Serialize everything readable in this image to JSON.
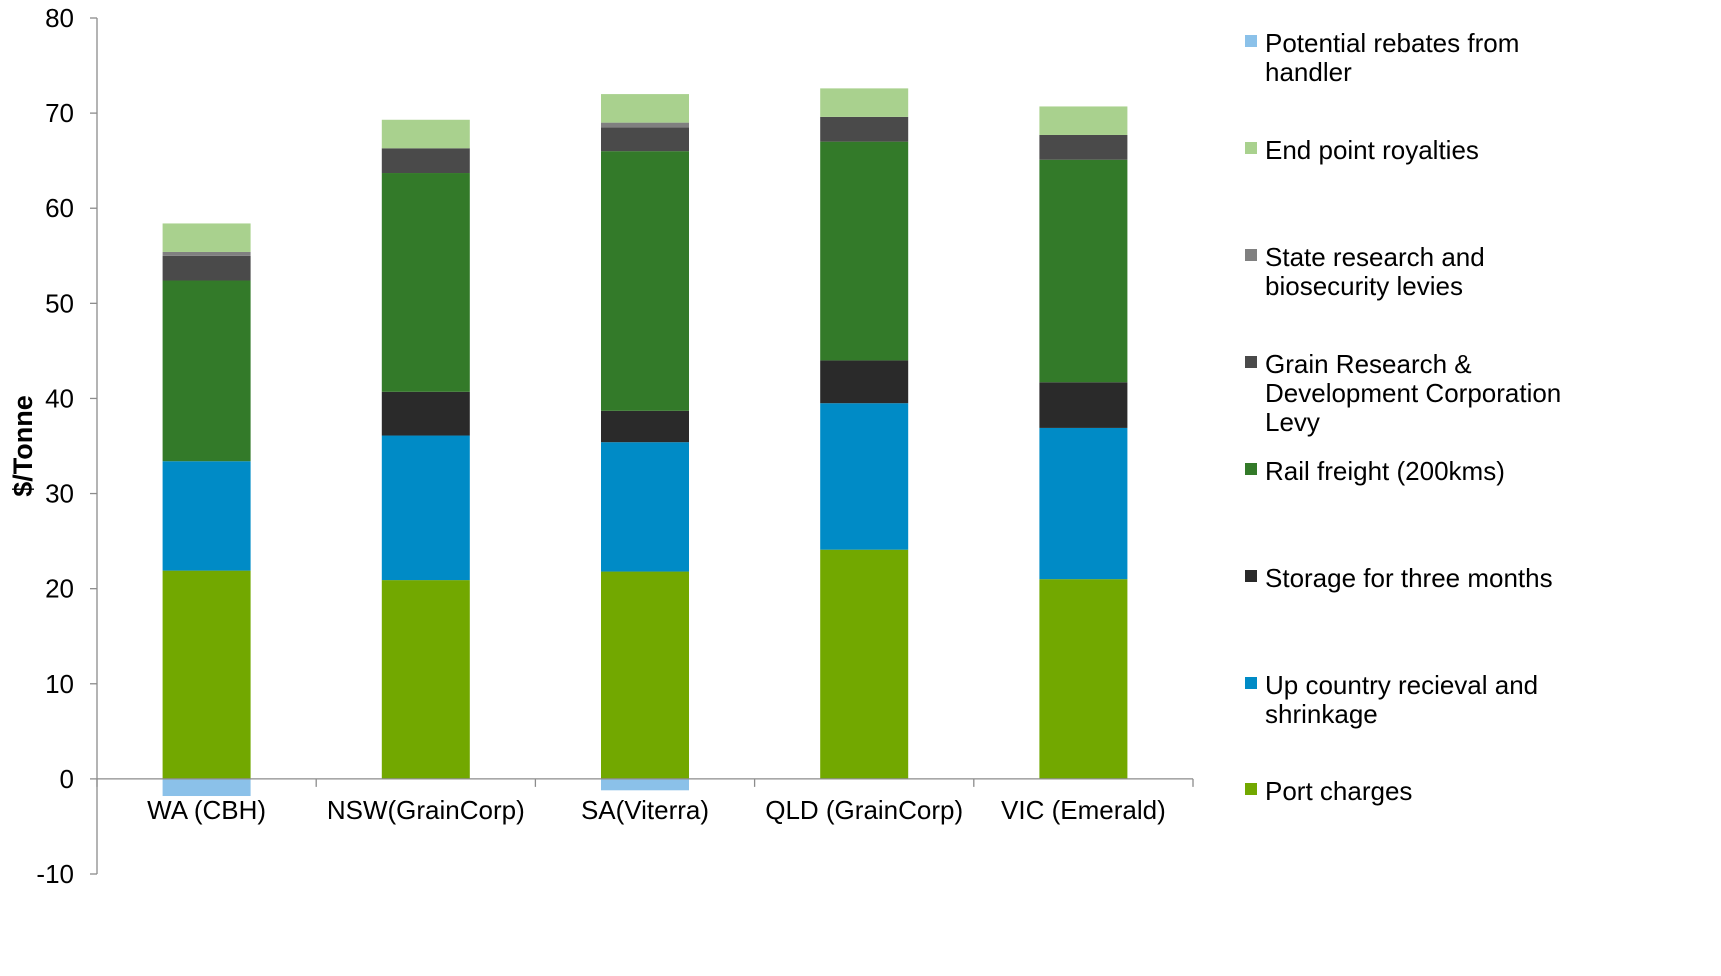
{
  "chart_data": {
    "type": "bar",
    "stacked": true,
    "title": "",
    "xlabel": "",
    "ylabel": "$/Tonne",
    "ylim": [
      -10,
      80
    ],
    "yticks": [
      -10,
      0,
      10,
      20,
      30,
      40,
      50,
      60,
      70,
      80
    ],
    "grid": false,
    "legend_position": "right",
    "categories": [
      "WA (CBH)",
      "NSW(GrainCorp)",
      "SA(Viterra)",
      "QLD (GrainCorp)",
      "VIC (Emerald)"
    ],
    "series": [
      {
        "name": "Port charges",
        "color": "#72A800",
        "values": [
          21.9,
          20.9,
          21.8,
          24.1,
          21.0
        ]
      },
      {
        "name": "Up country recieval and shrinkage",
        "color": "#008BC6",
        "values": [
          11.5,
          15.2,
          13.6,
          15.4,
          15.9
        ]
      },
      {
        "name": "Storage for three months",
        "color": "#2A2A2A",
        "values": [
          0.0,
          4.6,
          3.3,
          4.5,
          4.8
        ]
      },
      {
        "name": "Rail freight (200kms)",
        "color": "#337A29",
        "values": [
          19.0,
          23.0,
          27.3,
          23.0,
          23.4
        ]
      },
      {
        "name": "Grain Research & Development Corporation Levy",
        "color": "#4A4A4A",
        "values": [
          2.6,
          2.6,
          2.5,
          2.6,
          2.6
        ]
      },
      {
        "name": "State research and biosecurity levies",
        "color": "#808080",
        "values": [
          0.4,
          0.0,
          0.5,
          0.0,
          0.0
        ]
      },
      {
        "name": "End point royalties",
        "color": "#A9D18E",
        "values": [
          3.0,
          3.0,
          3.0,
          3.0,
          3.0
        ]
      },
      {
        "name": "Potential rebates from handler",
        "color": "#8BC1E9",
        "values": [
          -1.8,
          0.0,
          -1.2,
          0.0,
          0.0
        ]
      }
    ]
  },
  "legend_entries": [
    {
      "label": "Potential rebates from handler",
      "color": "#8BC1E9",
      "lines": [
        "Potential rebates from",
        "handler"
      ]
    },
    {
      "label": "End point royalties",
      "color": "#A9D18E",
      "lines": [
        "End point royalties"
      ]
    },
    {
      "label": "State research and biosecurity levies",
      "color": "#808080",
      "lines": [
        "State research and",
        "biosecurity levies"
      ]
    },
    {
      "label": "Grain Research & Development Corporation Levy",
      "color": "#4A4A4A",
      "lines": [
        "Grain Research &",
        "Development Corporation",
        "Levy"
      ]
    },
    {
      "label": "Rail freight (200kms)",
      "color": "#337A29",
      "lines": [
        "Rail freight (200kms)"
      ]
    },
    {
      "label": "Storage for three months",
      "color": "#2A2A2A",
      "lines": [
        "Storage for three months"
      ]
    },
    {
      "label": "Up country recieval and shrinkage",
      "color": "#008BC6",
      "lines": [
        "Up country recieval and",
        "shrinkage"
      ]
    },
    {
      "label": "Port charges",
      "color": "#72A800",
      "lines": [
        "Port charges"
      ]
    }
  ]
}
